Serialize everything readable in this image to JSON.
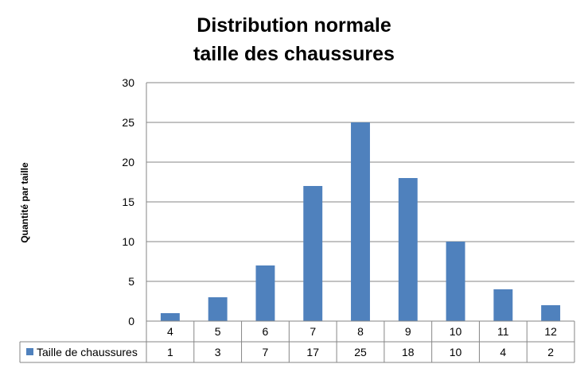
{
  "chart_data": {
    "type": "bar",
    "title_line1": "Distribution normale",
    "title_line2": "taille des chaussures",
    "xlabel": "",
    "ylabel": "Quantité par taille",
    "ylim": [
      0,
      30
    ],
    "yticks": [
      0,
      5,
      10,
      15,
      20,
      25,
      30
    ],
    "grid": true,
    "legend": "data-table-left",
    "data_table": true,
    "categories": [
      "4",
      "5",
      "6",
      "7",
      "8",
      "9",
      "10",
      "11",
      "12"
    ],
    "series": [
      {
        "name": "Taille de chaussures",
        "values": [
          1,
          3,
          7,
          17,
          25,
          18,
          10,
          4,
          2
        ],
        "color": "#4f81bd"
      }
    ]
  },
  "colors": {
    "bar": "#4f81bd",
    "grid": "#868686",
    "axis": "#868686"
  }
}
